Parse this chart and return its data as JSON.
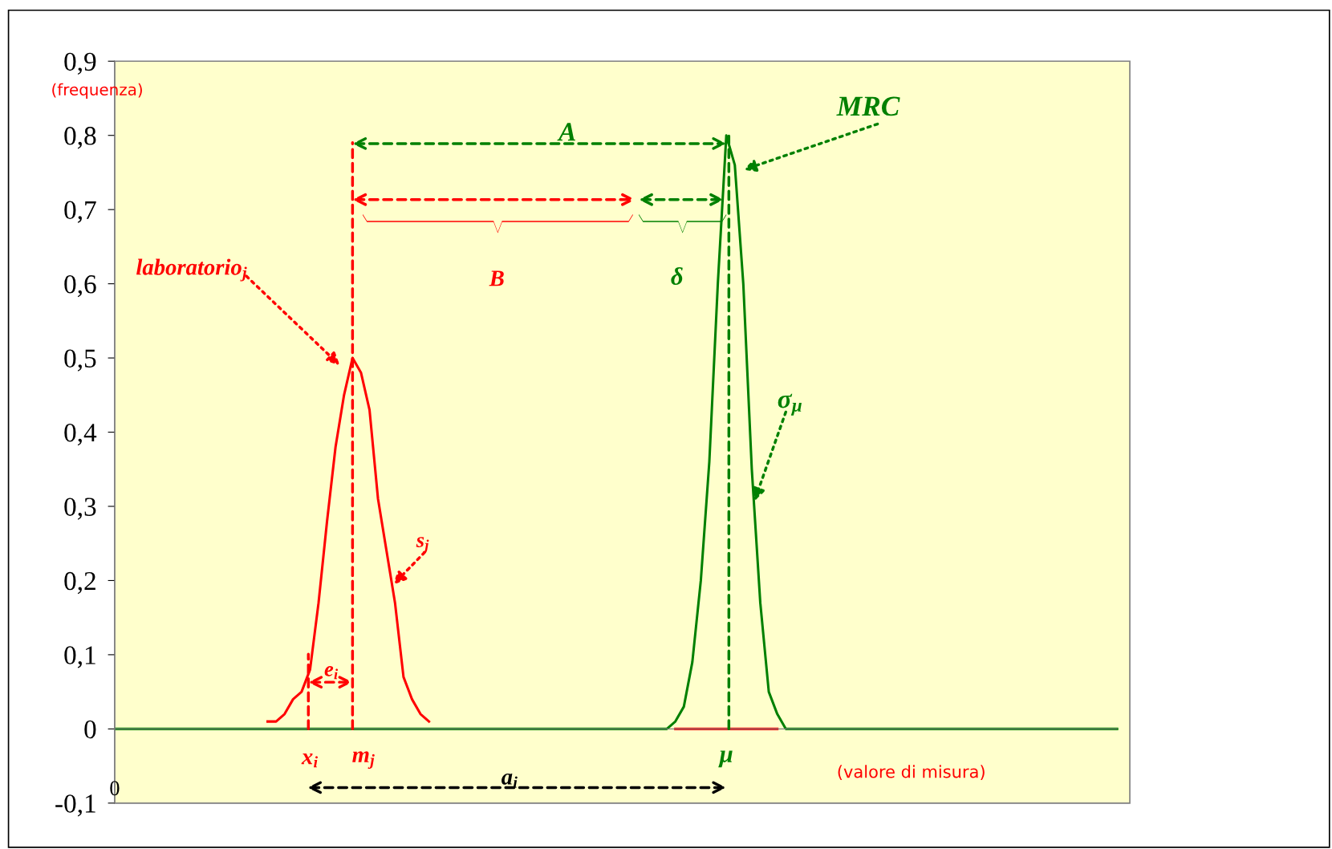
{
  "chart_data": {
    "type": "line",
    "categories": [
      null,
      null,
      null,
      null,
      null,
      null,
      null,
      null,
      null,
      null,
      null,
      null,
      null,
      null,
      null,
      null,
      null,
      null,
      null,
      null,
      null,
      null,
      null,
      null,
      null,
      null,
      null,
      null,
      null,
      null,
      null,
      null,
      null,
      null,
      null,
      null,
      null,
      null,
      null,
      null,
      null,
      null,
      null,
      null,
      null,
      null,
      null,
      null,
      null,
      null,
      null,
      null,
      null,
      null,
      null,
      null,
      null,
      null,
      null,
      null,
      null,
      null,
      null,
      null,
      null,
      null,
      null,
      null,
      null,
      null,
      null,
      null,
      null,
      null,
      null,
      null,
      null,
      null,
      null,
      null,
      null,
      null,
      null,
      null,
      null,
      null,
      null,
      null,
      null,
      null,
      null,
      null,
      null,
      null,
      null,
      null,
      null,
      null,
      null,
      null,
      null,
      null,
      null,
      null,
      null,
      null,
      null,
      null,
      null,
      null,
      null,
      null,
      null,
      null,
      null,
      null,
      null,
      null,
      null
    ],
    "series": [
      {
        "color": "#ff0000",
        "values": [
          null,
          null,
          null,
          null,
          null,
          null,
          null,
          null,
          null,
          null,
          null,
          null,
          null,
          null,
          null,
          null,
          null,
          null,
          0.01,
          0.01,
          0.02,
          0.04,
          0.05,
          0.08,
          0.17,
          0.28,
          0.38,
          0.45,
          0.5,
          0.48,
          0.43,
          0.31,
          0.24,
          0.17,
          0.07,
          0.04,
          0.02,
          0.01,
          null,
          null,
          null,
          null,
          null,
          null,
          null,
          null,
          null,
          null,
          null,
          null,
          null,
          null,
          null,
          null,
          null,
          null,
          null,
          null,
          null,
          null,
          null,
          null,
          null,
          null,
          null,
          null,
          0,
          0,
          0,
          0,
          0,
          0,
          0,
          0,
          0,
          0,
          0,
          0,
          0,
          null,
          null,
          null,
          null,
          null,
          null,
          null,
          null,
          null,
          null,
          null,
          null,
          null,
          null,
          null,
          null,
          null,
          null,
          null,
          null,
          null,
          null,
          null,
          null,
          null,
          null,
          null,
          null,
          null,
          null,
          null,
          null,
          null,
          null,
          null,
          null,
          null,
          null,
          null,
          null
        ]
      },
      {
        "color": "#008000",
        "values": [
          0,
          0,
          0,
          0,
          0,
          0,
          0,
          0,
          0,
          0,
          0,
          0,
          0,
          0,
          0,
          0,
          0,
          0,
          0,
          0,
          0,
          0,
          0,
          0,
          0,
          0,
          0,
          0,
          0,
          0,
          0,
          0,
          0,
          0,
          0,
          0,
          0,
          0,
          0,
          0,
          0,
          0,
          0,
          0,
          0,
          0,
          0,
          0,
          0,
          0,
          0,
          0,
          0,
          0,
          0,
          0,
          0,
          0,
          0,
          0,
          0,
          0,
          0,
          0,
          0,
          0,
          0.01,
          0.03,
          0.09,
          0.2,
          0.36,
          0.6,
          0.8,
          0.76,
          0.6,
          0.35,
          0.17,
          0.05,
          0.02,
          0,
          0,
          0,
          0,
          0,
          0,
          0,
          0,
          0,
          0,
          0,
          0,
          0,
          0,
          0,
          0,
          0,
          0,
          0,
          0,
          0,
          0,
          0,
          0,
          0,
          0,
          0,
          0,
          0,
          0,
          0,
          0,
          0,
          0,
          0,
          0,
          0,
          0,
          0,
          0
        ]
      }
    ],
    "ylim": [
      -0.1,
      0.9
    ],
    "yticks": [
      {
        "value": -0.1,
        "label": "-0,1"
      },
      0,
      {
        "value": 0.1,
        "label": "0,1"
      },
      {
        "value": 0.2,
        "label": "0,2"
      },
      {
        "value": 0.3,
        "label": "0,3"
      },
      {
        "value": 0.4,
        "label": "0,4"
      },
      {
        "value": 0.5,
        "label": "0,5"
      },
      {
        "value": 0.6,
        "label": "0,6"
      },
      {
        "value": 0.7,
        "label": "0,7"
      },
      {
        "value": 0.8,
        "label": "0,8"
      },
      {
        "value": 0.9,
        "label": "0,9"
      }
    ],
    "tick_labels": "y",
    "marker": "none",
    "line_style": "solid",
    "annotations": [
      "(frequenza)",
      "MRC",
      "A",
      "B",
      "δ",
      "laboratorio$_{j}$",
      "s$_{j}$",
      "σ$_{μ}$",
      "x$_{i}$",
      "m$_{j}$",
      "e$_{i}$",
      "μ",
      "a$_{i}$",
      "(valore di misura)",
      "0"
    ]
  }
}
